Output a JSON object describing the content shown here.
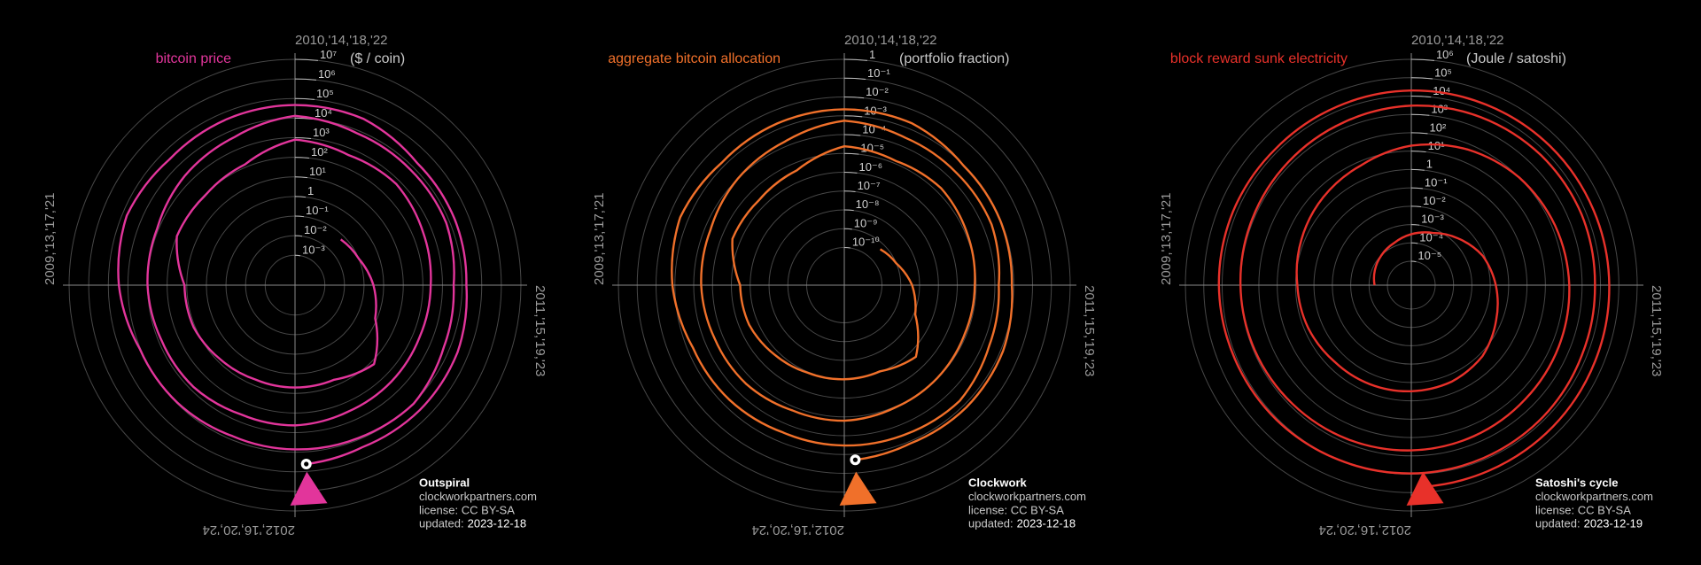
{
  "chart_data": [
    {
      "type": "spiral",
      "title": "bitcoin price",
      "unit": "($ / coin)",
      "color": "#e2359b",
      "log": true,
      "grid": true,
      "xlim": [
        2010,
        2014
      ],
      "xticks": [
        {
          "value": 2010,
          "label": "2010,'14,'18,'22"
        },
        {
          "value": 2011,
          "label": "2011,'15,'19,'23"
        },
        {
          "value": 2012,
          "label": "2012,'16,'20,'24"
        },
        {
          "value": 2009,
          "label": "2009,'13,'17,'21"
        }
      ],
      "ylim": [
        3e-05,
        10000000
      ],
      "yticks": [
        {
          "value": 0.001,
          "label": "10⁻³"
        },
        {
          "value": 0.01,
          "label": "10⁻²"
        },
        {
          "value": 0.1,
          "label": "10⁻¹"
        },
        1,
        {
          "value": 10,
          "label": "10¹"
        },
        {
          "value": 100,
          "label": "10²"
        },
        {
          "value": 1000,
          "label": "10³"
        },
        {
          "value": 10000,
          "label": "10⁴"
        },
        {
          "value": 100000,
          "label": "10⁵"
        },
        {
          "value": 1000000,
          "label": "10⁶"
        },
        {
          "value": 10000000,
          "label": "10⁷"
        }
      ],
      "x": [
        2010.5,
        2010.75,
        2011,
        2011.25,
        2011.5,
        2011.75,
        2012,
        2012.25,
        2012.5,
        2012.75,
        2013,
        2013.25,
        2013.5,
        2013.75,
        2014,
        2014.25,
        2014.5,
        2014.75,
        2015,
        2015.25,
        2015.5,
        2015.75,
        2016,
        2016.25,
        2016.5,
        2016.75,
        2017,
        2017.25,
        2017.5,
        2017.75,
        2018,
        2018.25,
        2018.5,
        2018.75,
        2019,
        2019.25,
        2019.5,
        2019.75,
        2020,
        2020.25,
        2020.5,
        2020.75,
        2021,
        2021.25,
        2021.5,
        2021.75,
        2022,
        2022.25,
        2022.5,
        2022.75,
        2023,
        2023.25,
        2023.5,
        2023.75,
        2023.96
      ],
      "values": [
        0.06,
        0.1,
        0.3,
        0.8,
        15,
        5,
        5,
        5,
        7,
        12,
        13,
        100,
        90,
        140,
        800,
        450,
        600,
        350,
        250,
        230,
        270,
        300,
        430,
        420,
        650,
        700,
        1000,
        1200,
        2500,
        4300,
        13000,
        7000,
        6400,
        6600,
        3700,
        5000,
        10800,
        8300,
        7200,
        6500,
        9100,
        10800,
        29000,
        58000,
        35000,
        43000,
        47000,
        45000,
        19500,
        19500,
        16500,
        28000,
        30500,
        27000,
        42000
      ],
      "credit": {
        "name": "Outspiral",
        "site": "clockworkpartners.com",
        "license": "license: CC BY-SA",
        "updated_label": "updated:",
        "updated": "2023-12-18"
      }
    },
    {
      "type": "spiral",
      "title": "aggregate bitcoin allocation",
      "unit": "(portfolio fraction)",
      "color": "#f0702a",
      "log": true,
      "grid": true,
      "xlim": [
        2010,
        2014
      ],
      "xticks": [
        {
          "value": 2010,
          "label": "2010,'14,'18,'22"
        },
        {
          "value": 2011,
          "label": "2011,'15,'19,'23"
        },
        {
          "value": 2012,
          "label": "2012,'16,'20,'24"
        },
        {
          "value": 2009,
          "label": "2009,'13,'17,'21"
        }
      ],
      "ylim": [
        1e-12,
        1
      ],
      "yticks": [
        {
          "value": 1e-10,
          "label": "10⁻¹⁰"
        },
        {
          "value": 1e-09,
          "label": "10⁻⁹"
        },
        {
          "value": 1e-08,
          "label": "10⁻⁸"
        },
        {
          "value": 1e-07,
          "label": "10⁻⁷"
        },
        {
          "value": 1e-06,
          "label": "10⁻⁶"
        },
        {
          "value": 1e-05,
          "label": "10⁻⁵"
        },
        {
          "value": 0.0001,
          "label": "10⁻⁴"
        },
        {
          "value": 0.001,
          "label": "10⁻³"
        },
        {
          "value": 0.01,
          "label": "10⁻²"
        },
        {
          "value": 0.1,
          "label": "10⁻¹"
        },
        1
      ],
      "x": [
        2010.5,
        2010.75,
        2011,
        2011.25,
        2011.5,
        2011.75,
        2012,
        2012.25,
        2012.5,
        2012.75,
        2013,
        2013.25,
        2013.5,
        2013.75,
        2014,
        2014.25,
        2014.5,
        2014.75,
        2015,
        2015.25,
        2015.5,
        2015.75,
        2016,
        2016.25,
        2016.5,
        2016.75,
        2017,
        2017.25,
        2017.5,
        2017.75,
        2018,
        2018.25,
        2018.5,
        2018.75,
        2019,
        2019.25,
        2019.5,
        2019.75,
        2020,
        2020.25,
        2020.5,
        2020.75,
        2021,
        2021.25,
        2021.5,
        2021.75,
        2022,
        2022.25,
        2022.5,
        2022.75,
        2023,
        2023.25,
        2023.5,
        2023.75,
        2023.96
      ],
      "values": [
        5e-10,
        1e-09,
        4e-09,
        1.2e-08,
        2.4e-07,
        9e-08,
        1e-07,
        1.1e-07,
        1.7e-07,
        3e-07,
        3.4e-07,
        2.7e-06,
        2.5e-06,
        4e-06,
        2.4e-05,
        1.4e-05,
        1.9e-05,
        1.2e-05,
        8.5e-06,
        8e-06,
        9.6e-06,
        1.1e-05,
        1.6e-05,
        1.6e-05,
        2.5e-05,
        2.8e-05,
        4e-05,
        4.9e-05,
        0.0001,
        0.00018,
        0.00055,
        0.0003,
        0.00027,
        0.00029,
        0.00016,
        0.00022,
        0.00048,
        0.00037,
        0.00033,
        0.0003,
        0.00042,
        0.0005,
        0.00135,
        0.0027,
        0.0016,
        0.002,
        0.0022,
        0.0021,
        0.00093,
        0.00093,
        0.00079,
        0.00135,
        0.0015,
        0.0013,
        0.002
      ],
      "credit": {
        "name": "Clockwork",
        "site": "clockworkpartners.com",
        "license": "license: CC BY-SA",
        "updated_label": "updated:",
        "updated": "2023-12-18"
      }
    },
    {
      "type": "spiral",
      "title": "block reward sunk electricity",
      "unit": "(Joule / satoshi)",
      "color": "#e8312a",
      "log": true,
      "grid": true,
      "xlim": [
        2010,
        2014
      ],
      "xticks": [
        {
          "value": 2010,
          "label": "2010,'14,'18,'22"
        },
        {
          "value": 2011,
          "label": "2011,'15,'19,'23"
        },
        {
          "value": 2012,
          "label": "2012,'16,'20,'24"
        },
        {
          "value": 2009,
          "label": "2009,'13,'17,'21"
        }
      ],
      "ylim": [
        5e-07,
        1000000
      ],
      "yticks": [
        {
          "value": 1e-05,
          "label": "10⁻⁵"
        },
        {
          "value": 0.0001,
          "label": "10⁻⁴"
        },
        {
          "value": 0.001,
          "label": "10⁻³"
        },
        {
          "value": 0.01,
          "label": "10⁻²"
        },
        {
          "value": 0.1,
          "label": "10⁻¹"
        },
        1,
        {
          "value": 10,
          "label": "10¹"
        },
        {
          "value": 100,
          "label": "10²"
        },
        {
          "value": 1000,
          "label": "10³"
        },
        {
          "value": 10000,
          "label": "10⁴"
        },
        {
          "value": 100000,
          "label": "10⁵"
        },
        {
          "value": 1000000,
          "label": "10⁶"
        }
      ],
      "x": [
        2009,
        2009.25,
        2009.5,
        2009.75,
        2010,
        2010.25,
        2010.5,
        2010.75,
        2011,
        2011.25,
        2011.5,
        2011.75,
        2012,
        2012.25,
        2012.5,
        2012.75,
        2013,
        2013.25,
        2013.5,
        2013.75,
        2014,
        2014.25,
        2014.5,
        2014.75,
        2015,
        2015.25,
        2015.5,
        2015.75,
        2016,
        2016.25,
        2016.5,
        2016.75,
        2017,
        2017.25,
        2017.5,
        2017.75,
        2018,
        2018.25,
        2018.5,
        2018.75,
        2019,
        2019.25,
        2019.5,
        2019.75,
        2020,
        2020.25,
        2020.5,
        2020.75,
        2021,
        2021.25,
        2021.5,
        2021.75,
        2022,
        2022.25,
        2022.5,
        2022.75,
        2023,
        2023.25,
        2023.5,
        2023.75,
        2023.96
      ],
      "values": [
        5e-05,
        7e-05,
        0.0001,
        0.00015,
        0.0003,
        0.0006,
        0.002,
        0.008,
        0.02,
        0.05,
        0.15,
        0.25,
        0.3,
        0.35,
        0.4,
        0.6,
        0.8,
        1.5,
        3,
        6,
        20,
        50,
        100,
        150,
        200,
        250,
        300,
        400,
        500,
        600,
        700,
        850,
        1000,
        1200,
        1500,
        2000,
        3000,
        4000,
        5000,
        5500,
        5000,
        5500,
        7000,
        8000,
        9000,
        10000,
        12000,
        13000,
        15000,
        16000,
        15000,
        17000,
        20000,
        22000,
        25000,
        27000,
        30000,
        34000,
        40000,
        45000,
        50000
      ],
      "credit": {
        "name": "Satoshi's cycle",
        "site": "clockworkpartners.com",
        "license": "license: CC BY-SA",
        "updated_label": "updated:",
        "updated": "2023-12-19"
      }
    }
  ]
}
